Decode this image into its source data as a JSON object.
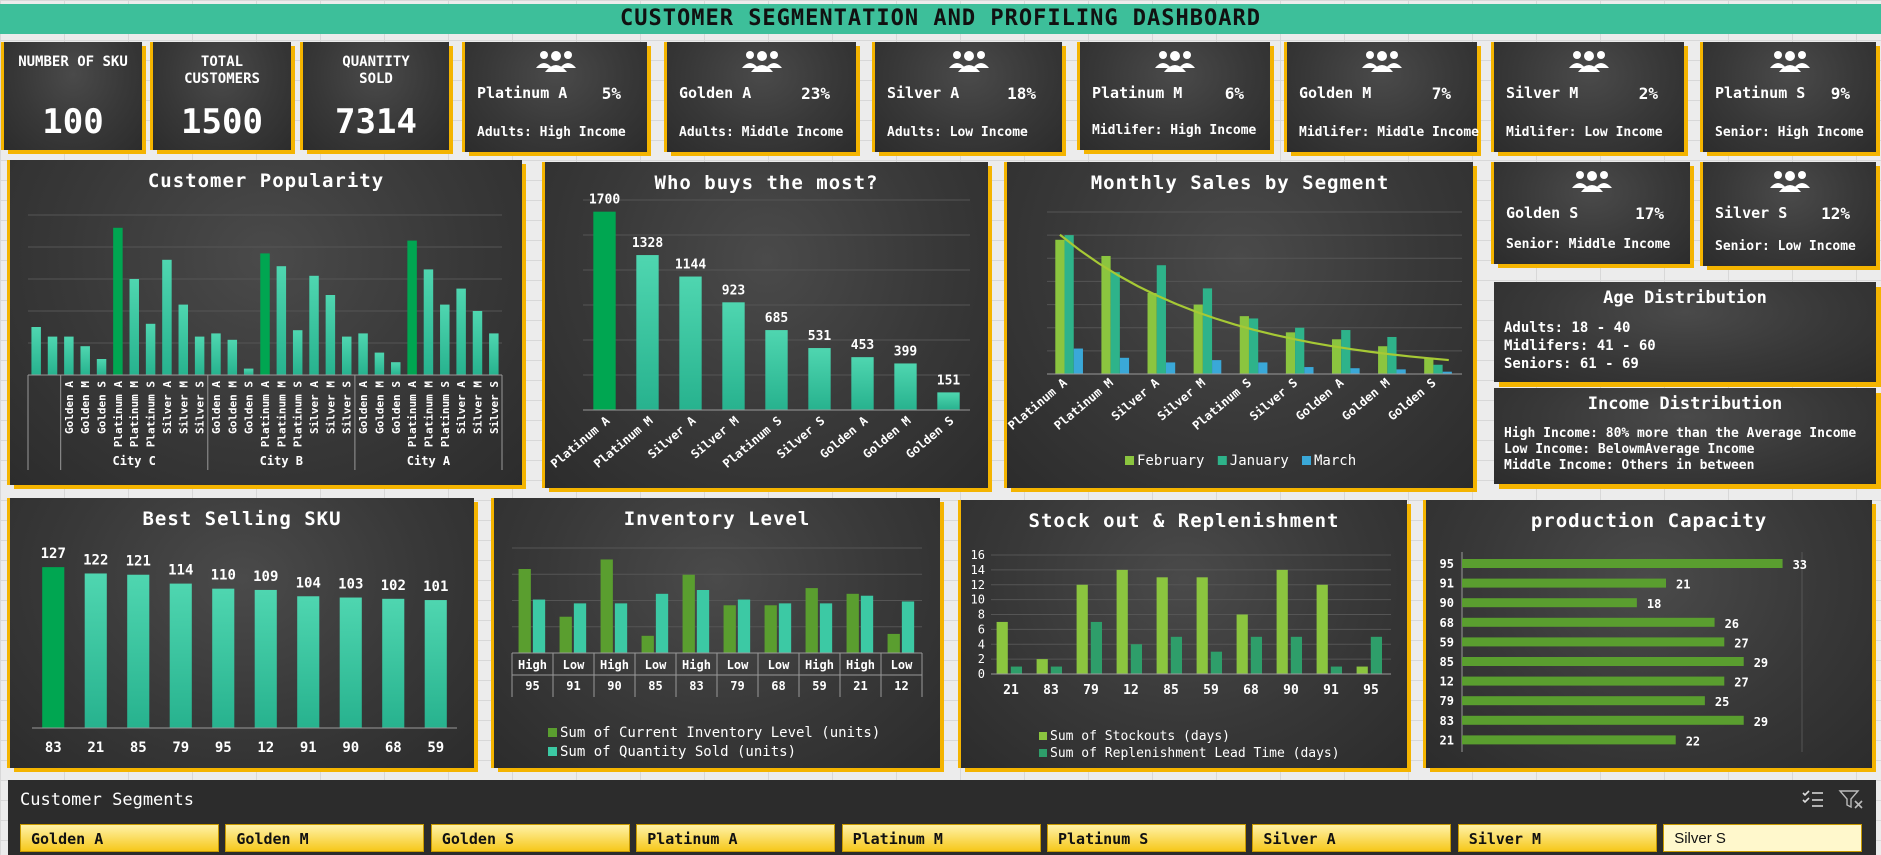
{
  "title": "CUSTOMER SEGMENTATION AND PROFILING DASHBOARD",
  "colors": {
    "title_bar": "#3dbf9a",
    "accent": "#f4b400",
    "panel": "#383838",
    "bar_teal": "#3cc9a4",
    "bar_green": "#00a651",
    "bar_lime": "#8bc53f",
    "bar_blue": "#3aa8d8"
  },
  "kpis": [
    {
      "label": "NUMBER OF SKU",
      "value": "100"
    },
    {
      "label": "TOTAL CUSTOMERS",
      "value": "1500"
    },
    {
      "label": "QUANTITY SOLD",
      "value": "7314"
    }
  ],
  "segments": [
    {
      "name": "Platinum A",
      "pct": "5%",
      "desc": "Adults: High Income",
      "icon": "people-group-icon"
    },
    {
      "name": "Golden A",
      "pct": "23%",
      "desc": "Adults: Middle Income",
      "icon": "people-group-icon"
    },
    {
      "name": "Silver A",
      "pct": "18%",
      "desc": "Adults: Low Income",
      "icon": "people-group-icon"
    },
    {
      "name": "Platinum M",
      "pct": "6%",
      "desc": "Midlifer: High Income",
      "icon": "people-group-icon"
    },
    {
      "name": "Golden M",
      "pct": "7%",
      "desc": "Midlifer: Middle Income",
      "icon": "people-group-icon"
    },
    {
      "name": "Silver M",
      "pct": "2%",
      "desc": "Midlifer: Low Income",
      "icon": "people-group-icon"
    },
    {
      "name": "Platinum S",
      "pct": "9%",
      "desc": "Senior: High Income",
      "icon": "people-group-icon"
    },
    {
      "name": "Golden S",
      "pct": "17%",
      "desc": "Senior: Middle Income",
      "icon": "people-group-icon"
    },
    {
      "name": "Silver S",
      "pct": "12%",
      "desc": "Senior: Low Income",
      "icon": "people-group-icon"
    }
  ],
  "age_distribution": {
    "title": "Age Distribution",
    "lines": [
      "Adults: 18 - 40",
      "Midlifers: 41 - 60",
      "Seniors: 61 - 69"
    ]
  },
  "income_distribution": {
    "title": "Income Distribution",
    "lines": [
      "High Income: 80% more than the Average Income",
      "Low Income: BelowmAverage Income",
      "Middle Income: Others in between"
    ]
  },
  "slicer": {
    "title": "Customer Segments",
    "items": [
      "Golden A",
      "Golden M",
      "Golden S",
      "Platinum A",
      "Platinum M",
      "Platinum S",
      "Silver A",
      "Silver M",
      "Silver S"
    ],
    "selected": "Silver S",
    "icons": [
      "multi-select-icon",
      "clear-filter-icon"
    ]
  },
  "chart_data": [
    {
      "id": "customer_popularity",
      "type": "bar",
      "title": "Customer Popularity",
      "groups": [
        "City C",
        "City B",
        "City A"
      ],
      "categories": [
        "Golden A",
        "Golden M",
        "Golden S",
        "Platinum A",
        "Platinum M",
        "Platinum S",
        "Silver A",
        "Silver M",
        "Silver S"
      ],
      "series": [
        {
          "group": "City C",
          "values": [
            12,
            9,
            5,
            46,
            30,
            16,
            36,
            22,
            12
          ]
        },
        {
          "group": "City B",
          "values": [
            13,
            11,
            2,
            38,
            34,
            14,
            31,
            25,
            12
          ]
        },
        {
          "group": "City A",
          "values": [
            13,
            7,
            4,
            42,
            33,
            22,
            27,
            20,
            13
          ]
        }
      ],
      "extra_leading_bars": [
        15,
        12
      ],
      "highlight": "Platinum A",
      "grid": true
    },
    {
      "id": "who_buys_most",
      "type": "bar",
      "title": "Who buys the most?",
      "categories": [
        "Platinum A",
        "Platinum M",
        "Silver A",
        "Silver M",
        "Platinum S",
        "Silver S",
        "Golden A",
        "Golden M",
        "Golden S"
      ],
      "values": [
        1700,
        1328,
        1144,
        923,
        685,
        531,
        453,
        399,
        151
      ],
      "ylim": [
        0,
        1800
      ]
    },
    {
      "id": "monthly_sales",
      "type": "bar",
      "title": "Monthly Sales by Segment",
      "categories": [
        "Platinum A",
        "Platinum M",
        "Silver A",
        "Silver M",
        "Platinum S",
        "Silver S",
        "Golden A",
        "Golden M",
        "Golden S"
      ],
      "series": [
        {
          "name": "February",
          "values": [
            580,
            510,
            350,
            300,
            250,
            180,
            150,
            120,
            70
          ]
        },
        {
          "name": "January",
          "values": [
            600,
            440,
            470,
            370,
            240,
            200,
            190,
            160,
            40
          ]
        },
        {
          "name": "March",
          "values": [
            110,
            70,
            50,
            60,
            50,
            30,
            25,
            20,
            10
          ]
        }
      ],
      "trendline": true,
      "ylim": [
        0,
        700
      ],
      "legend": "bottom"
    },
    {
      "id": "best_selling_sku",
      "type": "bar",
      "title": "Best Selling SKU",
      "categories": [
        "83",
        "21",
        "85",
        "79",
        "95",
        "12",
        "91",
        "90",
        "68",
        "59"
      ],
      "values": [
        127,
        122,
        121,
        114,
        110,
        109,
        104,
        103,
        102,
        101
      ],
      "ylim": [
        0,
        150
      ]
    },
    {
      "id": "inventory_level",
      "type": "bar",
      "title": "Inventory Level",
      "categories": [
        "95",
        "91",
        "90",
        "85",
        "83",
        "79",
        "68",
        "59",
        "21",
        "12"
      ],
      "category_groups": [
        "High",
        "Low",
        "High",
        "Low",
        "High",
        "Low",
        "Low",
        "High",
        "High",
        "Low"
      ],
      "series": [
        {
          "name": "Sum of Current Inventory Level (units)",
          "values": [
            88,
            38,
            98,
            18,
            82,
            50,
            50,
            68,
            62,
            20
          ]
        },
        {
          "name": "Sum of Quantity Sold (units)",
          "values": [
            56,
            52,
            52,
            62,
            66,
            56,
            52,
            52,
            60,
            54
          ]
        }
      ],
      "legend": "bottom"
    },
    {
      "id": "stockout_replenishment",
      "type": "bar",
      "title": "Stock out & Replenishment",
      "categories": [
        "21",
        "83",
        "79",
        "12",
        "85",
        "59",
        "68",
        "90",
        "91",
        "95"
      ],
      "series": [
        {
          "name": "Sum of Stockouts (days)",
          "values": [
            7,
            2,
            12,
            14,
            13,
            13,
            8,
            14,
            12,
            1
          ]
        },
        {
          "name": "Sum of Replenishment Lead Time (days)",
          "values": [
            1,
            1,
            7,
            4,
            5,
            3,
            5,
            5,
            1,
            5
          ]
        }
      ],
      "ylim": [
        0,
        16
      ],
      "yticks": [
        0,
        2,
        4,
        6,
        8,
        10,
        12,
        14,
        16
      ],
      "legend": "bottom"
    },
    {
      "id": "production_capacity",
      "type": "bar",
      "orientation": "horizontal",
      "title": "production Capacity",
      "categories": [
        "95",
        "91",
        "90",
        "68",
        "59",
        "85",
        "12",
        "79",
        "83",
        "21"
      ],
      "values": [
        33,
        21,
        18,
        26,
        27,
        29,
        27,
        25,
        29,
        22
      ],
      "xlim": [
        0,
        35
      ]
    }
  ]
}
